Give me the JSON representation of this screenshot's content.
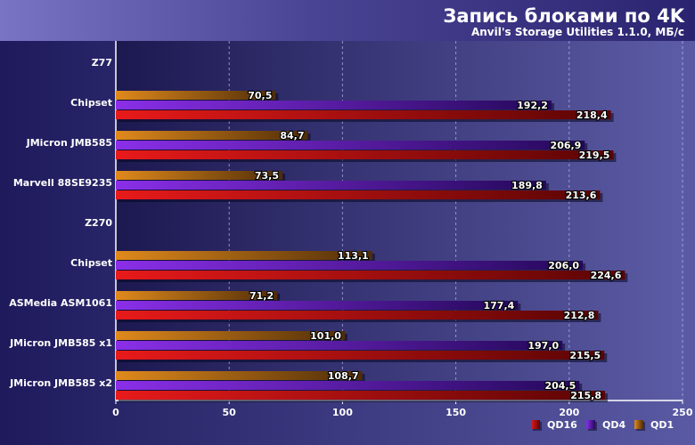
{
  "chart_data": {
    "type": "bar",
    "orientation": "horizontal",
    "title": "Запись блоками по 4K",
    "subtitle": "Anvil's Storage Utilities 1.1.0, МБ/с",
    "xlim": [
      0,
      250
    ],
    "xticks": [
      "0",
      "50",
      "100",
      "150",
      "200",
      "250"
    ],
    "xtick_values": [
      0,
      50,
      100,
      150,
      200,
      250
    ],
    "grid": true,
    "legend_position": "bottom-right",
    "groups": [
      {
        "label": "Z77",
        "is_header": true
      },
      {
        "label": "Chipset",
        "values": {
          "QD1": 70.5,
          "QD4": 192.2,
          "QD16": 218.4
        },
        "labels": {
          "QD1": "70,5",
          "QD4": "192,2",
          "QD16": "218,4"
        }
      },
      {
        "label": "JMicron JMB585",
        "values": {
          "QD1": 84.7,
          "QD4": 206.9,
          "QD16": 219.5
        },
        "labels": {
          "QD1": "84,7",
          "QD4": "206,9",
          "QD16": "219,5"
        }
      },
      {
        "label": "Marvell 88SE9235",
        "values": {
          "QD1": 73.5,
          "QD4": 189.8,
          "QD16": 213.6
        },
        "labels": {
          "QD1": "73,5",
          "QD4": "189,8",
          "QD16": "213,6"
        }
      },
      {
        "label": "Z270",
        "is_header": true
      },
      {
        "label": "Chipset",
        "values": {
          "QD1": 113.1,
          "QD4": 206.0,
          "QD16": 224.6
        },
        "labels": {
          "QD1": "113,1",
          "QD4": "206,0",
          "QD16": "224,6"
        }
      },
      {
        "label": "ASMedia ASM1061",
        "values": {
          "QD1": 71.2,
          "QD4": 177.4,
          "QD16": 212.8
        },
        "labels": {
          "QD1": "71,2",
          "QD4": "177,4",
          "QD16": "212,8"
        }
      },
      {
        "label": "JMicron JMB585 x1",
        "values": {
          "QD1": 101.0,
          "QD4": 197.0,
          "QD16": 215.5
        },
        "labels": {
          "QD1": "101,0",
          "QD4": "197,0",
          "QD16": "215,5"
        }
      },
      {
        "label": "JMicron JMB585 x2",
        "values": {
          "QD1": 108.7,
          "QD4": 204.5,
          "QD16": 215.8
        },
        "labels": {
          "QD1": "108,7",
          "QD4": "204,5",
          "QD16": "215,8"
        }
      }
    ],
    "series": [
      {
        "name": "QD1",
        "color": "#e08a1c",
        "dark": "#4e2c08"
      },
      {
        "name": "QD4",
        "color": "#8a2fe8",
        "dark": "#24085a"
      },
      {
        "name": "QD16",
        "color": "#e81a1a",
        "dark": "#5a0404"
      }
    ],
    "legend": [
      "QD16",
      "QD4",
      "QD1"
    ]
  }
}
